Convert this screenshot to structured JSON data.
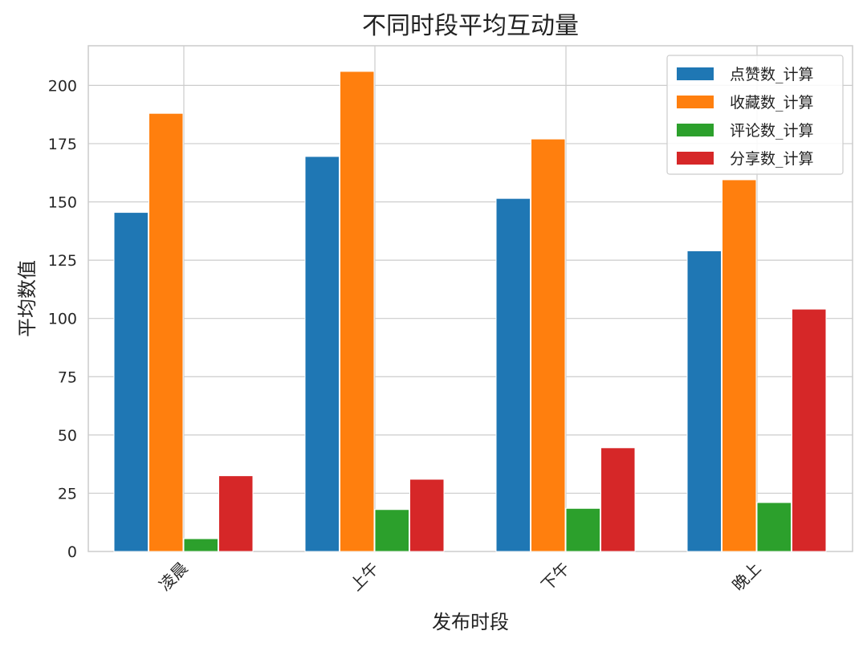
{
  "chart_data": {
    "type": "bar",
    "title": "不同时段平均互动量",
    "xlabel": "发布时段",
    "ylabel": "平均数值",
    "categories": [
      "凌晨",
      "上午",
      "下午",
      "晚上"
    ],
    "series": [
      {
        "name": "点赞数_计算",
        "color": "#1f77b4",
        "values": [
          145.5,
          169.5,
          151.5,
          129
        ]
      },
      {
        "name": "收藏数_计算",
        "color": "#ff7f0e",
        "values": [
          188,
          206,
          177,
          159.5
        ]
      },
      {
        "name": "评论数_计算",
        "color": "#2ca02c",
        "values": [
          5.5,
          18,
          18.5,
          21
        ]
      },
      {
        "name": "分享数_计算",
        "color": "#d62728",
        "values": [
          32.5,
          31,
          44.5,
          104
        ]
      }
    ],
    "ylim": [
      0,
      217
    ],
    "yticks": [
      "0",
      "25",
      "50",
      "75",
      "100",
      "125",
      "150",
      "175",
      "200"
    ],
    "grid": true,
    "legend_position": "top-right"
  }
}
